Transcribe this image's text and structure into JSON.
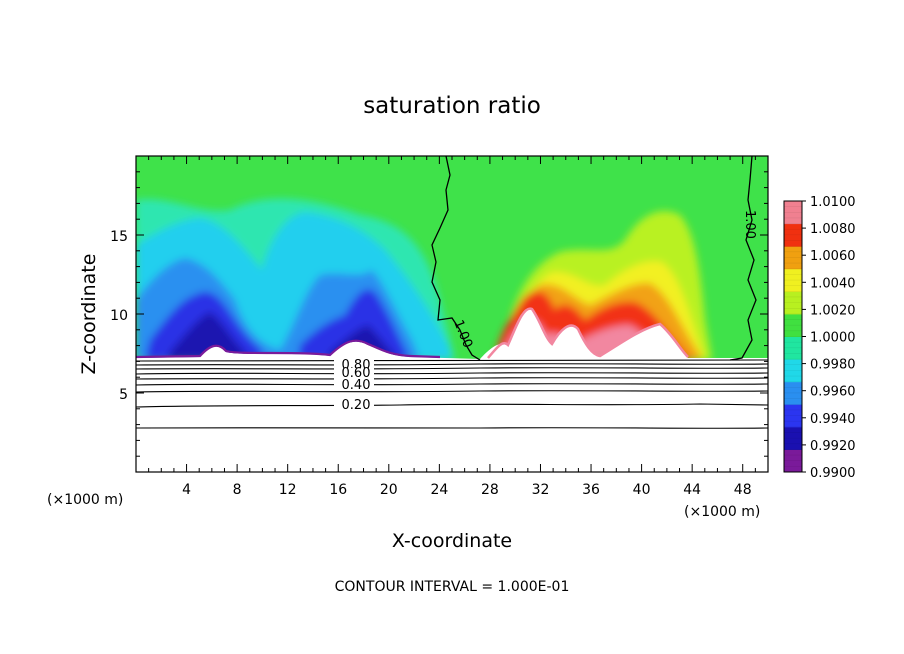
{
  "chart_data": {
    "type": "heatmap",
    "title": "saturation ratio",
    "xlabel": "X-coordinate",
    "ylabel": "Z-coordinate",
    "x_unit": "(×1000 m)",
    "z_unit": "(×1000 m)",
    "xlim": [
      0,
      50
    ],
    "ylim": [
      0,
      20
    ],
    "x_ticks": [
      4,
      8,
      12,
      16,
      20,
      24,
      28,
      32,
      36,
      40,
      44,
      48
    ],
    "y_ticks": [
      5,
      10,
      15
    ],
    "contour_interval_text": "CONTOUR INTERVAL = 1.000E-01",
    "colorbar": {
      "labels": [
        "0.9900",
        "0.9920",
        "0.9940",
        "0.9960",
        "0.9980",
        "1.0000",
        "1.0020",
        "1.0040",
        "1.0060",
        "1.0080",
        "1.0100"
      ],
      "colors": [
        "#7a1a9a",
        "#1a10b0",
        "#2b35f0",
        "#2a8ff0",
        "#20d8e8",
        "#20e6a0",
        "#40e040",
        "#b8f020",
        "#f0f020",
        "#f0a010",
        "#f03010",
        "#f08090"
      ]
    },
    "contour_lines": [
      {
        "level": 0.8,
        "label": "0.80",
        "label_x": 17.5
      },
      {
        "level": 0.6,
        "label": "0.60",
        "label_x": 17.5
      },
      {
        "level": 0.4,
        "label": "0.40",
        "label_x": 17.5
      },
      {
        "level": 0.2,
        "label": "0.20",
        "label_x": 17.5
      }
    ],
    "saturation_contour": {
      "level": 1.0,
      "label": "1.00"
    },
    "grid": false
  }
}
